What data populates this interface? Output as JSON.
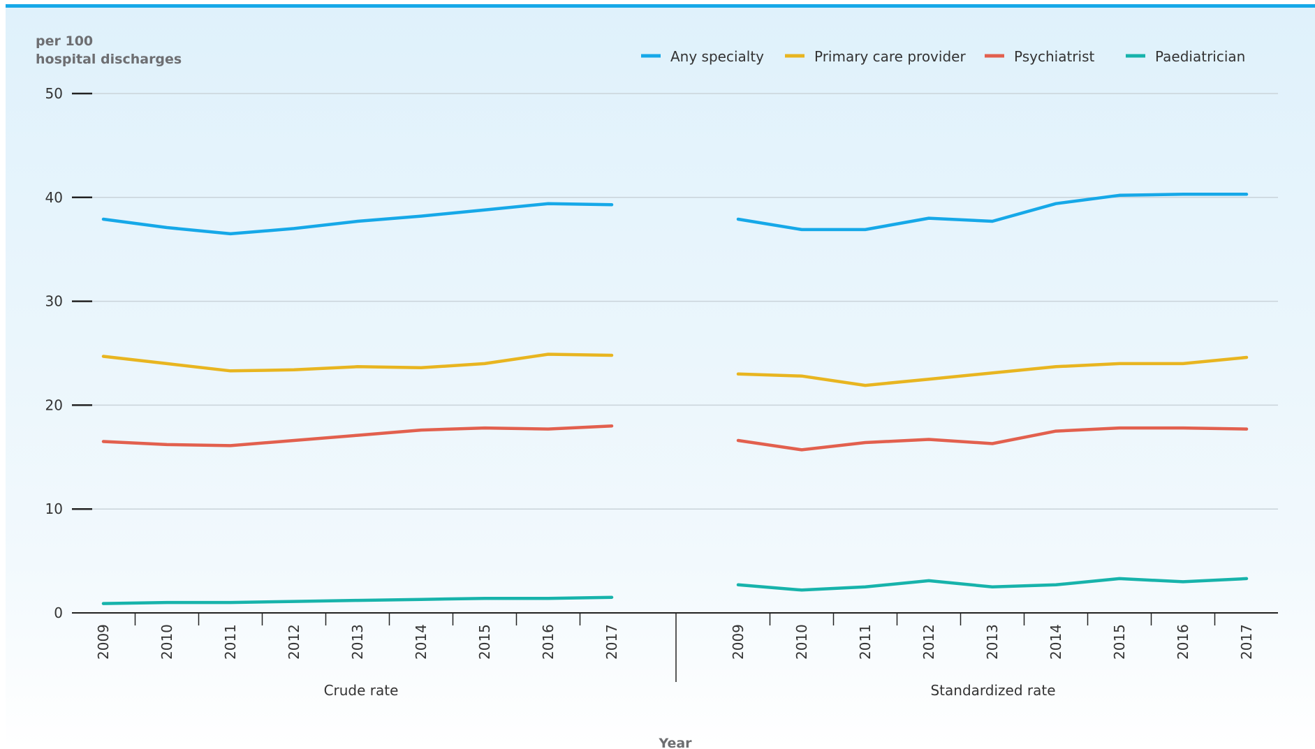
{
  "chart_data": {
    "type": "line",
    "ylabel": [
      "per 100",
      "hospital discharges"
    ],
    "xlabel": "Year",
    "ylim": [
      0,
      50
    ],
    "yticks": [
      0,
      10,
      20,
      30,
      40,
      50
    ],
    "grid": true,
    "legend_position": "top-right",
    "categories": [
      "2009",
      "2010",
      "2011",
      "2012",
      "2013",
      "2014",
      "2015",
      "2016",
      "2017"
    ],
    "panels": [
      {
        "label": "Crude rate",
        "series": [
          {
            "name": "Any specialty",
            "color": "#16a8e8",
            "values": [
              37.9,
              37.1,
              36.5,
              37.0,
              37.7,
              38.2,
              38.8,
              39.4,
              39.3
            ]
          },
          {
            "name": "Primary care provider",
            "color": "#e8b520",
            "values": [
              24.7,
              24.0,
              23.3,
              23.4,
              23.7,
              23.6,
              24.0,
              24.9,
              24.8
            ]
          },
          {
            "name": "Psychiatrist",
            "color": "#e2604e",
            "values": [
              16.5,
              16.2,
              16.1,
              16.6,
              17.1,
              17.6,
              17.8,
              17.7,
              18.0
            ]
          },
          {
            "name": "Paediatrician",
            "color": "#17b3ab",
            "values": [
              0.9,
              1.0,
              1.0,
              1.1,
              1.2,
              1.3,
              1.4,
              1.4,
              1.5
            ]
          }
        ]
      },
      {
        "label": "Standardized rate",
        "series": [
          {
            "name": "Any specialty",
            "color": "#16a8e8",
            "values": [
              37.9,
              36.9,
              36.9,
              38.0,
              37.7,
              39.4,
              40.2,
              40.3,
              40.3
            ]
          },
          {
            "name": "Primary care provider",
            "color": "#e8b520",
            "values": [
              23.0,
              22.8,
              21.9,
              22.5,
              23.1,
              23.7,
              24.0,
              24.0,
              24.6
            ]
          },
          {
            "name": "Psychiatrist",
            "color": "#e2604e",
            "values": [
              16.6,
              15.7,
              16.4,
              16.7,
              16.3,
              17.5,
              17.8,
              17.8,
              17.7
            ]
          },
          {
            "name": "Paediatrician",
            "color": "#17b3ab",
            "values": [
              2.7,
              2.2,
              2.5,
              3.1,
              2.5,
              2.7,
              3.3,
              3.0,
              3.3
            ]
          }
        ]
      }
    ]
  }
}
